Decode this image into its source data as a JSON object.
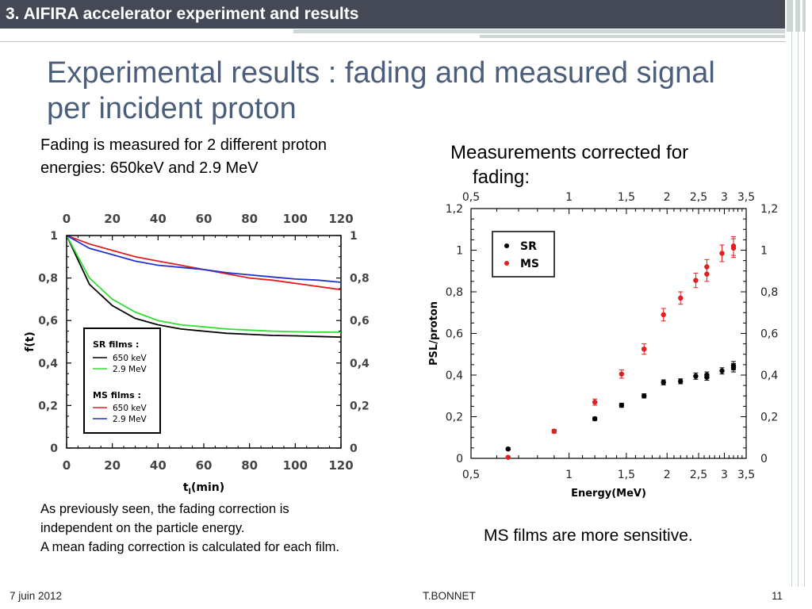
{
  "header": {
    "section_title": "3. AIFIRA accelerator experiment and results"
  },
  "slide": {
    "title_line1": "Experimental results : fading and measured signal",
    "title_line2": "per incident proton",
    "left_text": "Fading is measured for 2 different proton energies: 650keV and 2.9 MeV",
    "right_heading_line1": "Measurements corrected for",
    "right_heading_line2": "fading:",
    "bottom_left_line1": "As previously seen, the fading correction is independent on the particle energy.",
    "bottom_left_line2": "A mean fading correction is calculated for each film.",
    "bottom_right": "MS films are more sensitive."
  },
  "footer": {
    "date": "7  juin 2012",
    "author": "T.BONNET",
    "page": "11"
  },
  "colors": {
    "header_bar": "#454955",
    "title": "#4b5e7c",
    "black": "#000000",
    "green": "#33dd33",
    "red": "#e02020",
    "blue": "#2233cc"
  },
  "chart_data": [
    {
      "type": "line",
      "xlabel": "t",
      "xlabel_sub": "l",
      "xlabel_tail": "(min)",
      "ylabel": "f(t)",
      "xlim": [
        0,
        120
      ],
      "ylim": [
        0,
        1
      ],
      "x_ticks": [
        "0",
        "20",
        "40",
        "60",
        "80",
        "100",
        "120"
      ],
      "y_ticks": [
        "0",
        "0,2",
        "0,4",
        "0,6",
        "0,8",
        "1"
      ],
      "legend": {
        "group1_title": "SR films :",
        "group2_title": "MS films :",
        "entries": [
          "650 keV",
          "2.9 MeV",
          "650 keV",
          "2.9 MeV"
        ]
      },
      "series": [
        {
          "name": "650 keV",
          "group": "SR films",
          "color": "#000000",
          "x": [
            0,
            10,
            20,
            30,
            40,
            50,
            60,
            70,
            80,
            90,
            100,
            110,
            120
          ],
          "y": [
            1.0,
            0.77,
            0.67,
            0.61,
            0.58,
            0.56,
            0.55,
            0.54,
            0.535,
            0.53,
            0.528,
            0.525,
            0.522
          ]
        },
        {
          "name": "2.9 MeV",
          "group": "SR films",
          "color": "#33dd33",
          "x": [
            0,
            10,
            20,
            30,
            40,
            50,
            60,
            70,
            80,
            90,
            100,
            110,
            120
          ],
          "y": [
            1.0,
            0.8,
            0.7,
            0.64,
            0.6,
            0.58,
            0.57,
            0.56,
            0.555,
            0.55,
            0.547,
            0.545,
            0.545
          ]
        },
        {
          "name": "650 keV",
          "group": "MS films",
          "color": "#e02020",
          "x": [
            0,
            10,
            20,
            30,
            40,
            50,
            60,
            70,
            80,
            90,
            100,
            110,
            120
          ],
          "y": [
            1.0,
            0.96,
            0.93,
            0.9,
            0.88,
            0.86,
            0.84,
            0.82,
            0.8,
            0.79,
            0.775,
            0.76,
            0.745
          ]
        },
        {
          "name": "2.9 MeV",
          "group": "MS films",
          "color": "#2233cc",
          "x": [
            0,
            10,
            20,
            30,
            40,
            50,
            60,
            70,
            80,
            90,
            100,
            110,
            120
          ],
          "y": [
            1.0,
            0.94,
            0.91,
            0.88,
            0.86,
            0.85,
            0.84,
            0.825,
            0.815,
            0.805,
            0.795,
            0.79,
            0.78
          ]
        }
      ]
    },
    {
      "type": "scatter",
      "xscale": "log",
      "xlabel": "Energy(MeV)",
      "ylabel": "PSL/proton",
      "xlim": [
        0.5,
        3.5
      ],
      "ylim": [
        0,
        1.2
      ],
      "x_ticks": [
        0.5,
        1,
        1.5,
        2,
        2.5,
        3,
        3.5
      ],
      "x_tick_labels": [
        "0,5",
        "1",
        "1,5",
        "2",
        "2,5",
        "3",
        "3,5"
      ],
      "y_ticks": [
        0,
        0.2,
        0.4,
        0.6,
        0.8,
        1,
        1.2
      ],
      "y_tick_labels_left": [
        "0",
        "0,2",
        "0,4",
        "0,6",
        "0,8",
        "1",
        "1,2"
      ],
      "y_tick_labels_right": [
        "0",
        "0,2",
        "0,4",
        "0,6",
        "0,8",
        "1",
        "1,2"
      ],
      "legend_position": "top-left",
      "series": [
        {
          "name": "SR",
          "color": "#000000",
          "points": [
            [
              0.65,
              0.045
            ],
            [
              0.9,
              0.13
            ],
            [
              1.2,
              0.19
            ],
            [
              1.45,
              0.255
            ],
            [
              1.7,
              0.3
            ],
            [
              1.95,
              0.365
            ],
            [
              2.2,
              0.37
            ],
            [
              2.45,
              0.395
            ],
            [
              2.65,
              0.39
            ],
            [
              2.65,
              0.4
            ],
            [
              2.95,
              0.42
            ],
            [
              3.2,
              0.435
            ],
            [
              3.2,
              0.445
            ]
          ],
          "err": [
            0.005,
            0.008,
            0.008,
            0.01,
            0.01,
            0.012,
            0.012,
            0.015,
            0.015,
            0.015,
            0.015,
            0.02,
            0.02
          ]
        },
        {
          "name": "MS",
          "color": "#e02020",
          "points": [
            [
              0.65,
              0.005
            ],
            [
              0.9,
              0.13
            ],
            [
              1.2,
              0.27
            ],
            [
              1.45,
              0.405
            ],
            [
              1.7,
              0.525
            ],
            [
              1.95,
              0.69
            ],
            [
              2.2,
              0.77
            ],
            [
              2.45,
              0.855
            ],
            [
              2.65,
              0.885
            ],
            [
              2.65,
              0.92
            ],
            [
              2.95,
              0.985
            ],
            [
              3.2,
              1.01
            ],
            [
              3.2,
              1.02
            ]
          ],
          "err": [
            0.005,
            0.008,
            0.015,
            0.02,
            0.025,
            0.03,
            0.03,
            0.035,
            0.035,
            0.035,
            0.04,
            0.045,
            0.045
          ]
        }
      ]
    }
  ]
}
